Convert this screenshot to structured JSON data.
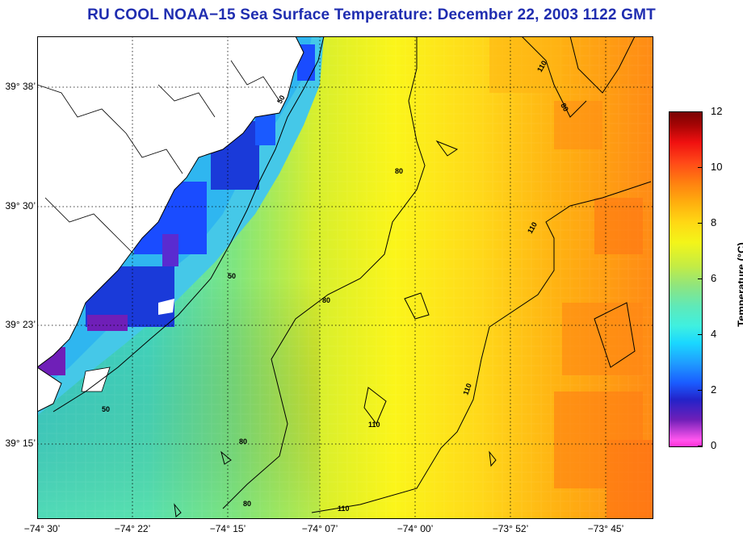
{
  "title": "RU COOL  NOAA−15  Sea Surface Temperature:  December 22, 2003 1122 GMT",
  "lat_labels": [
    {
      "text": "39° 38’",
      "lat": 39.633
    },
    {
      "text": "39° 30’",
      "lat": 39.5
    },
    {
      "text": "39° 23’",
      "lat": 39.383
    },
    {
      "text": "39° 15’",
      "lat": 39.25
    }
  ],
  "lon_labels": [
    {
      "text": "−74° 30’",
      "lon": -74.5
    },
    {
      "text": "−74° 22’",
      "lon": -74.367
    },
    {
      "text": "−74° 15’",
      "lon": -74.25
    },
    {
      "text": "−74° 07’",
      "lon": -74.117
    },
    {
      "text": "−74° 00’",
      "lon": -74.0
    },
    {
      "text": "−73° 52’",
      "lon": -73.867
    },
    {
      "text": "−73° 45’",
      "lon": -73.75
    }
  ],
  "colorbar": {
    "label": "Temperature (°C)",
    "ticks": [
      "0",
      "2",
      "4",
      "6",
      "8",
      "10",
      "12"
    ],
    "min": 0,
    "max": 12
  },
  "contours": [
    {
      "label": "50"
    },
    {
      "label": "80"
    },
    {
      "label": "110"
    }
  ],
  "colors": {
    "title": "#1f2db0",
    "land": "#ffffff",
    "coast": "#000000"
  }
}
